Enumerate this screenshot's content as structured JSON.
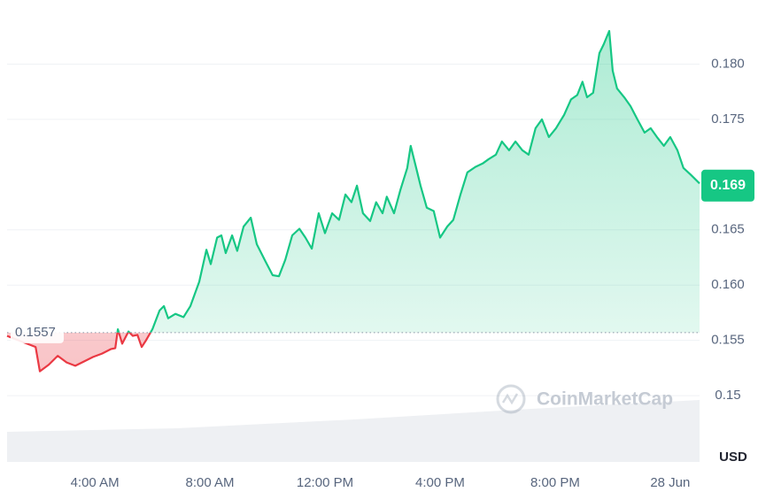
{
  "chart_data": {
    "type": "line",
    "x": [
      0.95,
      1.94,
      2.09,
      2.4,
      2.71,
      3.02,
      3.32,
      3.63,
      3.94,
      4.25,
      4.55,
      4.71,
      4.8,
      4.95,
      5.17,
      5.32,
      5.48,
      5.63,
      5.78,
      6.0,
      6.25,
      6.4,
      6.55,
      6.8,
      7.08,
      7.32,
      7.63,
      7.88,
      8.03,
      8.25,
      8.4,
      8.55,
      8.77,
      8.95,
      9.17,
      9.42,
      9.63,
      9.94,
      10.18,
      10.4,
      10.62,
      10.86,
      11.11,
      11.32,
      11.54,
      11.78,
      12.0,
      12.25,
      12.49,
      12.71,
      12.92,
      13.11,
      13.32,
      13.57,
      13.78,
      14.0,
      14.15,
      14.4,
      14.62,
      14.86,
      14.98,
      15.17,
      15.32,
      15.54,
      15.78,
      16.0,
      16.25,
      16.46,
      16.71,
      16.95,
      17.23,
      17.48,
      17.69,
      17.94,
      18.15,
      18.4,
      18.62,
      18.86,
      19.08,
      19.32,
      19.54,
      19.78,
      20.03,
      20.31,
      20.55,
      20.77,
      20.95,
      21.11,
      21.32,
      21.54,
      21.69,
      21.88,
      22.0,
      22.15,
      22.4,
      22.62,
      22.86,
      23.11,
      23.32,
      23.54,
      23.78,
      24.0,
      24.25,
      24.46,
      24.71,
      25.02
    ],
    "values": [
      0.1554,
      0.1544,
      0.1522,
      0.1528,
      0.1536,
      0.153,
      0.1527,
      0.1531,
      0.1535,
      0.1538,
      0.1542,
      0.1543,
      0.156,
      0.1547,
      0.1558,
      0.1554,
      0.1555,
      0.1544,
      0.155,
      0.156,
      0.1577,
      0.1581,
      0.157,
      0.1574,
      0.1571,
      0.1581,
      0.1603,
      0.1632,
      0.1619,
      0.1643,
      0.1645,
      0.1629,
      0.1645,
      0.1631,
      0.1653,
      0.1661,
      0.1637,
      0.1621,
      0.1609,
      0.1608,
      0.1623,
      0.1645,
      0.1651,
      0.1643,
      0.1633,
      0.1665,
      0.1647,
      0.1665,
      0.1659,
      0.1682,
      0.1675,
      0.169,
      0.1665,
      0.1658,
      0.1675,
      0.1665,
      0.168,
      0.1665,
      0.1686,
      0.1706,
      0.1726,
      0.1706,
      0.169,
      0.167,
      0.1667,
      0.1643,
      0.1653,
      0.1659,
      0.1682,
      0.1702,
      0.1707,
      0.171,
      0.1714,
      0.1718,
      0.173,
      0.1722,
      0.173,
      0.1722,
      0.1718,
      0.1742,
      0.175,
      0.1734,
      0.1742,
      0.1754,
      0.1768,
      0.1772,
      0.1784,
      0.177,
      0.1774,
      0.181,
      0.1818,
      0.183,
      0.1794,
      0.1778,
      0.177,
      0.1762,
      0.175,
      0.1738,
      0.1742,
      0.1734,
      0.1726,
      0.1734,
      0.1722,
      0.1706,
      0.17,
      0.1692
    ],
    "color_up": "#16c784",
    "color_down": "#ea3943",
    "baseline": 0.1557,
    "current_price": 0.169,
    "xlim": [
      0.95,
      25.02
    ],
    "ylim": [
      0.144,
      0.185
    ],
    "xticks": [
      {
        "value": 4,
        "label": "4:00 AM"
      },
      {
        "value": 8,
        "label": "8:00 AM"
      },
      {
        "value": 12,
        "label": "12:00 PM"
      },
      {
        "value": 16,
        "label": "4:00 PM"
      },
      {
        "value": 20,
        "label": "8:00 PM"
      },
      {
        "value": 24,
        "label": "28 Jun"
      }
    ],
    "yticks": [
      {
        "value": 0.18,
        "label": "0.180"
      },
      0.175,
      0.165,
      {
        "value": 0.16,
        "label": "0.160"
      },
      0.155,
      0.15
    ],
    "y_axis_label": "USD",
    "watermark": "CoinMarketCap",
    "grid": true
  }
}
